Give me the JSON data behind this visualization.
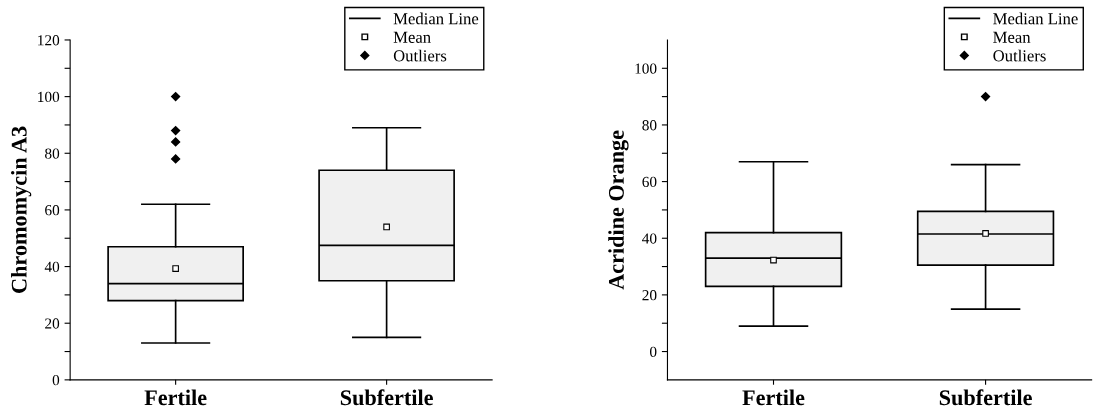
{
  "chart_data": [
    {
      "type": "box",
      "ylabel": "Chromomycin A3",
      "categories": [
        "Fertile",
        "Subfertile"
      ],
      "ylim": [
        0,
        120
      ],
      "yticks": [
        0,
        {
          "value": 10,
          "label": null
        },
        20,
        {
          "value": 30,
          "label": null
        },
        40,
        {
          "value": 50,
          "label": null
        },
        60,
        {
          "value": 70,
          "label": null
        },
        80,
        {
          "value": 90,
          "label": null
        },
        100,
        {
          "value": 110,
          "label": null
        },
        120
      ],
      "series": [
        {
          "color": "#f0f0f0",
          "boxes": [
            {
              "low": 13,
              "q1": 28,
              "median": 34,
              "q3": 47,
              "high": 62,
              "mean": 39.3,
              "outliers": [
                78,
                84,
                88,
                100
              ]
            },
            {
              "low": 15,
              "q1": 35,
              "median": 47.5,
              "q3": 74,
              "high": 89,
              "mean": 54
            }
          ]
        }
      ],
      "annotations": [
        "Median Line",
        "Mean",
        "Outliers"
      ],
      "grid": false
    },
    {
      "type": "box",
      "ylabel": "Acridine Orange",
      "categories": [
        "Fertile",
        "Subfertile"
      ],
      "ylim": [
        -10,
        110
      ],
      "yticks": [
        0,
        {
          "value": 10,
          "label": null
        },
        20,
        {
          "value": 30,
          "label": null
        },
        40,
        {
          "value": 50,
          "label": null
        },
        60,
        {
          "value": 70,
          "label": null
        },
        80,
        {
          "value": 90,
          "label": null
        },
        100
      ],
      "series": [
        {
          "color": "#f0f0f0",
          "boxes": [
            {
              "low": 9,
              "q1": 23,
              "median": 33,
              "q3": 42,
              "high": 67,
              "mean": 32.3
            },
            {
              "low": 15,
              "q1": 30.5,
              "median": 41.5,
              "q3": 49.5,
              "high": 66,
              "mean": 41.7,
              "outliers": [
                90
              ]
            }
          ]
        }
      ],
      "annotations": [
        "Median Line",
        "Mean",
        "Outliers"
      ],
      "grid": false
    }
  ]
}
